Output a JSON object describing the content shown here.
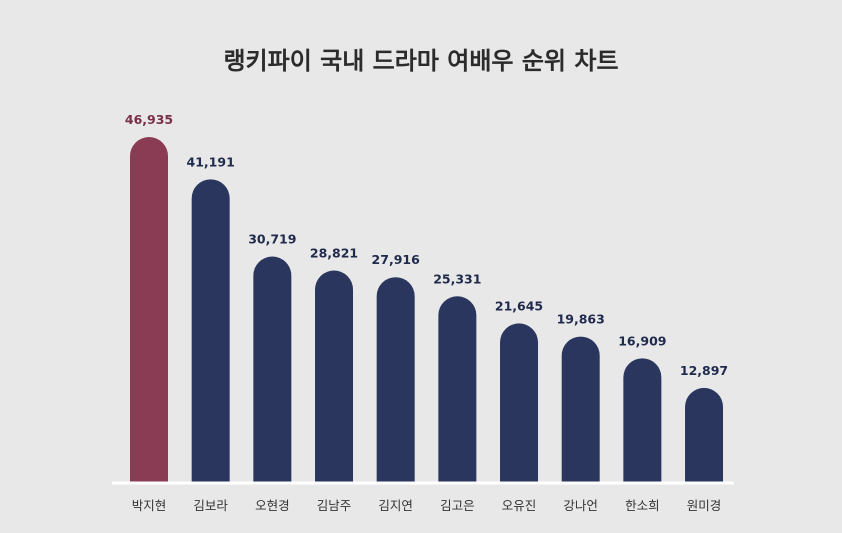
{
  "chart_data": {
    "type": "bar",
    "title": "랭키파이 국내 드라마 여배우 순위 차트",
    "categories": [
      "박지현",
      "김보라",
      "오현경",
      "김남주",
      "김지연",
      "김고은",
      "오유진",
      "강나언",
      "한소희",
      "원미경"
    ],
    "values": [
      46935,
      41191,
      30719,
      28821,
      27916,
      25331,
      21645,
      19863,
      16909,
      12897
    ],
    "value_labels": [
      "46,935",
      "41,191",
      "30,719",
      "28,821",
      "27,916",
      "25,331",
      "21,645",
      "19,863",
      "16,909",
      "12,897"
    ],
    "highlight_index": 0,
    "ylim": [
      0,
      46935
    ],
    "grid": false,
    "legend": "none"
  },
  "colors": {
    "background": "#e8e8e8",
    "highlight": "#8b3c55",
    "bar": "#2a365e",
    "highlight_label": "#7a2f48",
    "label": "#1f2a4d",
    "baseline": "#ffffff"
  }
}
